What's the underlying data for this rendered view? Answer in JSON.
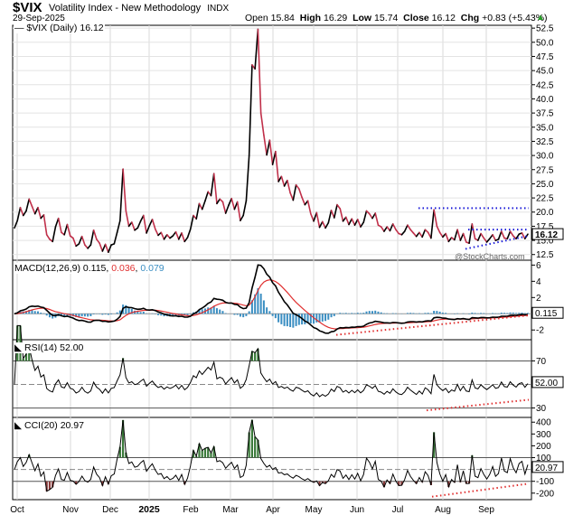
{
  "header": {
    "symbol": "$VIX",
    "name": "Volatility Index - New Methodology",
    "exchange": "INDX",
    "date": "29-Sep-2025",
    "open_label": "Open",
    "open": "15.84",
    "high_label": "High",
    "high": "16.29",
    "low_label": "Low",
    "low": "15.74",
    "close_label": "Close",
    "close": "16.12",
    "chg_label": "Chg",
    "chg": "+0.83 (+5.43%)"
  },
  "watermark": "@StockCharts.com",
  "colors": {
    "up": "#000000",
    "down": "#c0304a",
    "macd_line": "#000000",
    "signal": "#e03030",
    "histogram": "#3a8ec2",
    "rsi_fill": "#3a7a3a",
    "cci_down_fill": "#8a3a3a",
    "trend_blue": "#1a1ad8",
    "trend_red": "#e03030"
  },
  "chart_data": [
    {
      "type": "line",
      "title": "$VIX (Daily) 16.12",
      "last_value": "16.12",
      "x_tick_labels": [
        "Oct",
        "Nov",
        "Dec",
        "2025",
        "Feb",
        "Mar",
        "Apr",
        "May",
        "Jun",
        "Jul",
        "Aug",
        "Sep"
      ],
      "y_tick_labels": [
        "12.5",
        "15.0",
        "17.5",
        "20.0",
        "22.5",
        "25.0",
        "27.5",
        "30.0",
        "32.5",
        "35.0",
        "37.5",
        "40.0",
        "42.5",
        "45.0",
        "47.5",
        "50.0",
        "52.5"
      ],
      "ylim": [
        11.5,
        53
      ],
      "series": [
        {
          "values": [
            17.2,
            18.5,
            20.8,
            19.4,
            20.2,
            22.3,
            21.0,
            19.7,
            20.8,
            18.9,
            19.5,
            16.0,
            15.2,
            14.8,
            17.4,
            18.9,
            16.4,
            16.0,
            17.8,
            15.8,
            15.4,
            14.0,
            14.4,
            15.7,
            14.2,
            13.6,
            14.2,
            16.8,
            15.2,
            14.5,
            13.1,
            14.3,
            12.9,
            14.2,
            14.4,
            16.4,
            18.5,
            27.6,
            20.2,
            17.5,
            18.2,
            16.8,
            17.2,
            18.4,
            19.4,
            16.3,
            17.6,
            18.7,
            17.0,
            15.9,
            16.4,
            15.2,
            16.0,
            15.4,
            15.8,
            16.5,
            15.2,
            16.3,
            14.8,
            15.5,
            17.0,
            19.4,
            18.8,
            21.5,
            20.5,
            22.0,
            23.6,
            22.9,
            26.8,
            21.5,
            22.3,
            21.8,
            19.8,
            21.2,
            22.4,
            20.5,
            21.8,
            18.5,
            19.4,
            22.0,
            30.0,
            46.0,
            45.3,
            52.3,
            37.5,
            33.6,
            30.1,
            32.7,
            28.4,
            30.7,
            25.4,
            26.3,
            24.6,
            25.6,
            23.4,
            22.1,
            24.8,
            24.1,
            22.6,
            21.3,
            22.0,
            19.7,
            18.4,
            19.9,
            17.3,
            18.3,
            17.2,
            18.1,
            20.3,
            19.0,
            21.3,
            20.6,
            18.4,
            19.1,
            17.8,
            18.8,
            17.7,
            18.7,
            17.4,
            18.2,
            20.2,
            19.7,
            18.9,
            19.8,
            17.7,
            17.4,
            16.6,
            17.4,
            16.7,
            17.9,
            16.9,
            16.2,
            16.0,
            16.6,
            17.7,
            16.9,
            16.3,
            15.7,
            16.4,
            15.6,
            16.9,
            16.4,
            15.4,
            20.4,
            17.5,
            16.4,
            15.6,
            16.2,
            14.8,
            15.5,
            15.1,
            16.9,
            15.0,
            16.2,
            14.7,
            14.5,
            17.9,
            15.3,
            15.0,
            16.2,
            15.4,
            14.7,
            15.3,
            16.0,
            15.0,
            15.2,
            16.6,
            15.4,
            15.3,
            16.6,
            15.8,
            15.3,
            16.1,
            16.3,
            15.3,
            16.1
          ]
        }
      ],
      "trend_lines": [
        "resistance ~20.7",
        "upper ~16.9",
        "rising support"
      ]
    },
    {
      "type": "line",
      "title": "MACD(12,26,9)",
      "legend": [
        {
          "name": "MACD(12,26,9)",
          "value": "0.115"
        },
        {
          "name": "",
          "value": "0.036"
        },
        {
          "name": "",
          "value": "0.079"
        }
      ],
      "last_value": "0.115",
      "y_tick_labels": [
        "6",
        "4",
        "2",
        "-2"
      ],
      "ylim": [
        -3.2,
        6.6
      ]
    },
    {
      "type": "line",
      "title": "RSI(14)",
      "legend_value": "52.00",
      "last_value": "52.00",
      "y_tick_labels": [
        "70",
        "50",
        "30"
      ],
      "ylim": [
        22,
        88
      ]
    },
    {
      "type": "line",
      "title": "CCI(20)",
      "legend_value": "20.97",
      "last_value": "20.97",
      "y_tick_labels": [
        "400",
        "300",
        "200",
        "100",
        "0",
        "-100",
        "-200"
      ],
      "ylim": [
        -255,
        440
      ]
    }
  ]
}
